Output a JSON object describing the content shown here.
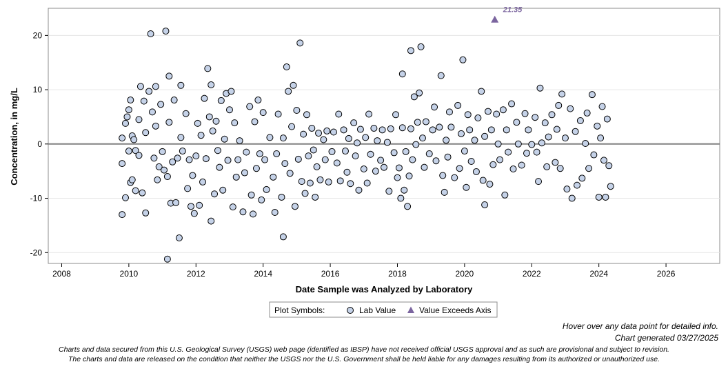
{
  "chart_data": {
    "type": "scatter",
    "xlabel": "Date Sample was Analyzed by Laboratory",
    "ylabel": "Concentration, in mg/L",
    "xlim": [
      2007.6,
      2027.6
    ],
    "ylim": [
      -22,
      25
    ],
    "x_ticks": [
      "2008",
      "2010",
      "2012",
      "2014",
      "2016",
      "2018",
      "2020",
      "2022",
      "2024",
      "2026"
    ],
    "y_ticks": [
      "-20",
      "-10",
      "0",
      "10",
      "20"
    ],
    "grid": true,
    "reference_line_y": 0,
    "legend": {
      "placement": "bottom-center",
      "title": "Plot Symbols:",
      "items": [
        {
          "symbol": "circle",
          "label": "Lab Value"
        },
        {
          "symbol": "triangle",
          "label": "Value Exceeds Axis"
        }
      ]
    },
    "series": [
      {
        "name": "Lab Value",
        "marker": "circle",
        "points": [
          [
            2009.8,
            1.1
          ],
          [
            2009.8,
            -3.6
          ],
          [
            2009.8,
            -13.0
          ],
          [
            2009.9,
            3.8
          ],
          [
            2009.9,
            -9.9
          ],
          [
            2009.95,
            5.0
          ],
          [
            2010.0,
            6.3
          ],
          [
            2010.0,
            -1.3
          ],
          [
            2010.05,
            8.1
          ],
          [
            2010.05,
            -7.1
          ],
          [
            2010.1,
            1.5
          ],
          [
            2010.1,
            -6.6
          ],
          [
            2010.15,
            0.8
          ],
          [
            2010.2,
            -1.2
          ],
          [
            2010.2,
            -8.6
          ],
          [
            2010.3,
            4.5
          ],
          [
            2010.3,
            -2.1
          ],
          [
            2010.35,
            10.6
          ],
          [
            2010.4,
            -9.0
          ],
          [
            2010.45,
            7.9
          ],
          [
            2010.5,
            -12.7
          ],
          [
            2010.5,
            2.1
          ],
          [
            2010.6,
            9.7
          ],
          [
            2010.65,
            20.3
          ],
          [
            2010.7,
            5.9
          ],
          [
            2010.75,
            -2.6
          ],
          [
            2010.8,
            10.6
          ],
          [
            2010.8,
            3.3
          ],
          [
            2010.85,
            -6.6
          ],
          [
            2010.9,
            -4.2
          ],
          [
            2010.95,
            7.3
          ],
          [
            2011.0,
            -1.4
          ],
          [
            2011.05,
            -4.8
          ],
          [
            2011.1,
            20.8
          ],
          [
            2011.15,
            -21.2
          ],
          [
            2011.15,
            -6.0
          ],
          [
            2011.2,
            12.5
          ],
          [
            2011.2,
            4.0
          ],
          [
            2011.25,
            -10.9
          ],
          [
            2011.3,
            -3.3
          ],
          [
            2011.35,
            8.1
          ],
          [
            2011.4,
            -10.8
          ],
          [
            2011.45,
            -2.6
          ],
          [
            2011.5,
            -17.3
          ],
          [
            2011.55,
            10.8
          ],
          [
            2011.55,
            1.2
          ],
          [
            2011.6,
            -1.3
          ],
          [
            2011.7,
            5.6
          ],
          [
            2011.75,
            -8.2
          ],
          [
            2011.8,
            -2.9
          ],
          [
            2011.85,
            -11.5
          ],
          [
            2011.9,
            -5.8
          ],
          [
            2011.95,
            -12.8
          ],
          [
            2012.0,
            -2.2
          ],
          [
            2012.05,
            3.8
          ],
          [
            2012.1,
            -11.3
          ],
          [
            2012.15,
            1.6
          ],
          [
            2012.2,
            -7.0
          ],
          [
            2012.25,
            8.4
          ],
          [
            2012.3,
            -2.7
          ],
          [
            2012.35,
            13.9
          ],
          [
            2012.4,
            5.0
          ],
          [
            2012.45,
            -14.2
          ],
          [
            2012.45,
            10.9
          ],
          [
            2012.5,
            2.4
          ],
          [
            2012.55,
            -9.2
          ],
          [
            2012.6,
            4.2
          ],
          [
            2012.65,
            -1.2
          ],
          [
            2012.7,
            -4.3
          ],
          [
            2012.75,
            8.0
          ],
          [
            2012.8,
            -8.5
          ],
          [
            2012.85,
            0.9
          ],
          [
            2012.9,
            9.3
          ],
          [
            2012.95,
            -3.0
          ],
          [
            2013.0,
            6.3
          ],
          [
            2013.05,
            9.7
          ],
          [
            2013.1,
            -11.6
          ],
          [
            2013.15,
            3.9
          ],
          [
            2013.2,
            -6.1
          ],
          [
            2013.25,
            -2.9
          ],
          [
            2013.3,
            0.6
          ],
          [
            2013.4,
            -12.5
          ],
          [
            2013.45,
            -5.3
          ],
          [
            2013.5,
            -1.5
          ],
          [
            2013.6,
            6.9
          ],
          [
            2013.65,
            -9.4
          ],
          [
            2013.7,
            -12.9
          ],
          [
            2013.75,
            4.1
          ],
          [
            2013.8,
            -4.5
          ],
          [
            2013.85,
            8.1
          ],
          [
            2013.9,
            -1.8
          ],
          [
            2013.95,
            -10.3
          ],
          [
            2014.0,
            5.8
          ],
          [
            2014.05,
            -2.9
          ],
          [
            2014.1,
            -8.4
          ],
          [
            2014.2,
            1.2
          ],
          [
            2014.3,
            -6.1
          ],
          [
            2014.35,
            -12.6
          ],
          [
            2014.4,
            -1.8
          ],
          [
            2014.45,
            5.5
          ],
          [
            2014.55,
            -9.8
          ],
          [
            2014.6,
            -17.1
          ],
          [
            2014.6,
            1.1
          ],
          [
            2014.65,
            -3.6
          ],
          [
            2014.7,
            14.2
          ],
          [
            2014.75,
            9.7
          ],
          [
            2014.8,
            -5.4
          ],
          [
            2014.85,
            3.2
          ],
          [
            2014.9,
            10.8
          ],
          [
            2014.95,
            -11.5
          ],
          [
            2015.0,
            6.2
          ],
          [
            2015.05,
            -2.8
          ],
          [
            2015.1,
            18.6
          ],
          [
            2015.15,
            -6.9
          ],
          [
            2015.2,
            1.8
          ],
          [
            2015.25,
            -9.1
          ],
          [
            2015.3,
            5.4
          ],
          [
            2015.35,
            -2.2
          ],
          [
            2015.4,
            -7.2
          ],
          [
            2015.45,
            2.9
          ],
          [
            2015.5,
            -1.1
          ],
          [
            2015.55,
            -9.8
          ],
          [
            2015.6,
            -4.2
          ],
          [
            2015.65,
            2.0
          ],
          [
            2015.7,
            -6.6
          ],
          [
            2015.8,
            0.8
          ],
          [
            2015.85,
            -2.9
          ],
          [
            2015.9,
            2.4
          ],
          [
            2015.95,
            -7.0
          ],
          [
            2016.05,
            -1.4
          ],
          [
            2016.1,
            2.2
          ],
          [
            2016.2,
            -3.5
          ],
          [
            2016.25,
            5.5
          ],
          [
            2016.3,
            -6.8
          ],
          [
            2016.4,
            2.6
          ],
          [
            2016.45,
            -1.3
          ],
          [
            2016.5,
            -5.2
          ],
          [
            2016.55,
            1.0
          ],
          [
            2016.6,
            -7.3
          ],
          [
            2016.7,
            3.9
          ],
          [
            2016.75,
            -2.2
          ],
          [
            2016.8,
            0.2
          ],
          [
            2016.85,
            -8.5
          ],
          [
            2016.9,
            2.7
          ],
          [
            2017.0,
            -4.6
          ],
          [
            2017.05,
            1.2
          ],
          [
            2017.1,
            -7.2
          ],
          [
            2017.15,
            5.5
          ],
          [
            2017.2,
            -1.9
          ],
          [
            2017.3,
            2.9
          ],
          [
            2017.35,
            -5.0
          ],
          [
            2017.4,
            0.6
          ],
          [
            2017.5,
            -3.0
          ],
          [
            2017.55,
            2.6
          ],
          [
            2017.6,
            -4.3
          ],
          [
            2017.7,
            0.3
          ],
          [
            2017.75,
            -8.7
          ],
          [
            2017.8,
            2.8
          ],
          [
            2017.9,
            -1.6
          ],
          [
            2017.95,
            5.4
          ],
          [
            2018.0,
            -6.2
          ],
          [
            2018.05,
            -4.4
          ],
          [
            2018.1,
            -10.0
          ],
          [
            2018.15,
            3.0
          ],
          [
            2018.15,
            12.9
          ],
          [
            2018.2,
            -8.5
          ],
          [
            2018.25,
            -1.4
          ],
          [
            2018.3,
            -11.5
          ],
          [
            2018.35,
            -5.9
          ],
          [
            2018.4,
            17.2
          ],
          [
            2018.4,
            2.8
          ],
          [
            2018.45,
            -2.9
          ],
          [
            2018.5,
            8.7
          ],
          [
            2018.55,
            -0.1
          ],
          [
            2018.6,
            4.0
          ],
          [
            2018.65,
            9.4
          ],
          [
            2018.7,
            17.9
          ],
          [
            2018.75,
            1.1
          ],
          [
            2018.8,
            -4.3
          ],
          [
            2018.85,
            4.1
          ],
          [
            2018.95,
            -1.8
          ],
          [
            2019.05,
            2.6
          ],
          [
            2019.1,
            6.8
          ],
          [
            2019.15,
            -3.1
          ],
          [
            2019.25,
            3.1
          ],
          [
            2019.3,
            12.6
          ],
          [
            2019.35,
            -5.8
          ],
          [
            2019.4,
            -8.9
          ],
          [
            2019.45,
            0.7
          ],
          [
            2019.5,
            -2.4
          ],
          [
            2019.55,
            5.9
          ],
          [
            2019.6,
            3.1
          ],
          [
            2019.7,
            -6.2
          ],
          [
            2019.8,
            7.1
          ],
          [
            2019.85,
            -4.5
          ],
          [
            2019.9,
            1.9
          ],
          [
            2019.95,
            15.5
          ],
          [
            2020.0,
            -1.3
          ],
          [
            2020.05,
            -8.0
          ],
          [
            2020.1,
            5.4
          ],
          [
            2020.15,
            2.6
          ],
          [
            2020.2,
            -3.2
          ],
          [
            2020.3,
            0.7
          ],
          [
            2020.35,
            -5.1
          ],
          [
            2020.4,
            4.8
          ],
          [
            2020.5,
            9.7
          ],
          [
            2020.55,
            -6.7
          ],
          [
            2020.6,
            -11.2
          ],
          [
            2020.6,
            1.4
          ],
          [
            2020.7,
            6.0
          ],
          [
            2020.75,
            -7.4
          ],
          [
            2020.8,
            2.6
          ],
          [
            2020.85,
            -3.8
          ],
          [
            2020.95,
            5.5
          ],
          [
            2021.0,
            0.0
          ],
          [
            2021.05,
            -2.9
          ],
          [
            2021.15,
            6.3
          ],
          [
            2021.2,
            -9.4
          ],
          [
            2021.25,
            2.6
          ],
          [
            2021.3,
            -1.5
          ],
          [
            2021.4,
            7.4
          ],
          [
            2021.45,
            -4.6
          ],
          [
            2021.55,
            4.0
          ],
          [
            2021.6,
            0.0
          ],
          [
            2021.7,
            -3.9
          ],
          [
            2021.8,
            5.6
          ],
          [
            2021.85,
            -1.7
          ],
          [
            2021.9,
            2.6
          ],
          [
            2022.0,
            -0.1
          ],
          [
            2022.1,
            4.9
          ],
          [
            2022.15,
            -1.5
          ],
          [
            2022.2,
            -6.9
          ],
          [
            2022.25,
            10.3
          ],
          [
            2022.3,
            0.2
          ],
          [
            2022.4,
            3.9
          ],
          [
            2022.45,
            -4.2
          ],
          [
            2022.5,
            1.3
          ],
          [
            2022.6,
            5.4
          ],
          [
            2022.7,
            -3.4
          ],
          [
            2022.75,
            2.7
          ],
          [
            2022.8,
            7.1
          ],
          [
            2022.85,
            -4.5
          ],
          [
            2022.9,
            9.2
          ],
          [
            2023.0,
            1.1
          ],
          [
            2023.05,
            -8.3
          ],
          [
            2023.15,
            6.5
          ],
          [
            2023.2,
            -10.0
          ],
          [
            2023.3,
            2.3
          ],
          [
            2023.35,
            -7.6
          ],
          [
            2023.45,
            4.3
          ],
          [
            2023.5,
            -6.3
          ],
          [
            2023.6,
            0.1
          ],
          [
            2023.65,
            5.7
          ],
          [
            2023.7,
            -4.5
          ],
          [
            2023.8,
            9.1
          ],
          [
            2023.85,
            -2.0
          ],
          [
            2023.95,
            3.3
          ],
          [
            2024.0,
            -9.8
          ],
          [
            2024.05,
            1.1
          ],
          [
            2024.1,
            6.9
          ],
          [
            2024.15,
            -3.0
          ],
          [
            2024.2,
            -9.8
          ],
          [
            2024.25,
            4.6
          ],
          [
            2024.3,
            -4.0
          ],
          [
            2024.35,
            -7.8
          ]
        ]
      },
      {
        "name": "Value Exceeds Axis",
        "marker": "triangle",
        "points": [
          [
            2020.9,
            23.0
          ]
        ],
        "labels": [
          "21.35"
        ]
      }
    ]
  },
  "notes": {
    "hover": "Hover over any data point for detailed info.",
    "generated": "Chart generated 03/27/2025",
    "disclaimer_line1": "Charts and data secured from this U.S. Geological Survey (USGS) web page (identified as IBSP) have not received official USGS approval and as such are provisional and subject to revision.",
    "disclaimer_line2": "The charts and data are released on the condition that neither the USGS nor the U.S. Government shall be held liable for any damages resulting from its authorized or unauthorized use."
  },
  "colors": {
    "point_fill": "#c5d2e8",
    "point_stroke": "#000000",
    "triangle_fill": "#7b659f",
    "label_color": "#7b659f",
    "zero_line": "#808080",
    "grid": "#e6e6e6"
  }
}
